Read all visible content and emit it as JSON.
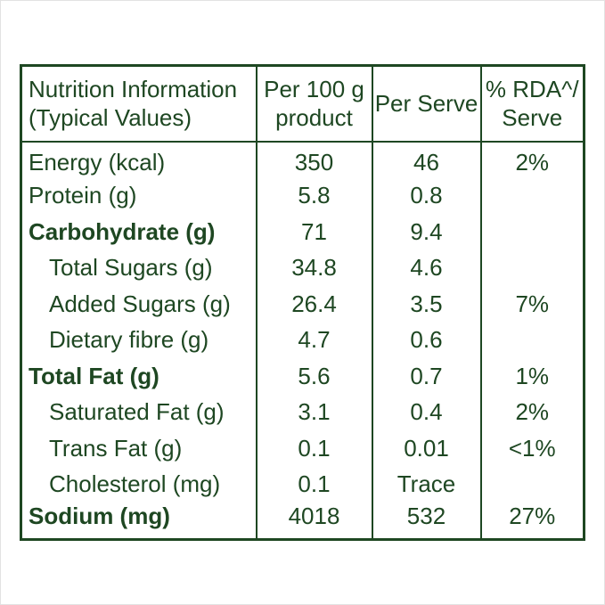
{
  "colors": {
    "text": "#1e4722",
    "background": "#ffffff",
    "border": "#1e4722"
  },
  "table": {
    "header": {
      "col1_line1": "Nutrition Information",
      "col1_line2": "(Typical Values)",
      "col2_line1": "Per 100 g",
      "col2_line2": "product",
      "col3": "Per Serve",
      "col4_line1": "% RDA^/",
      "col4_line2": "Serve"
    },
    "rows": [
      {
        "label": "Energy (kcal)",
        "per100": "350",
        "serve": "46",
        "rda": "2%",
        "bold": false,
        "indent": false
      },
      {
        "label": "Protein (g)",
        "per100": "5.8",
        "serve": "0.8",
        "rda": "",
        "bold": false,
        "indent": false
      },
      {
        "label": "Carbohydrate (g)",
        "per100": "71",
        "serve": "9.4",
        "rda": "",
        "bold": true,
        "indent": false
      },
      {
        "label": "Total Sugars (g)",
        "per100": "34.8",
        "serve": "4.6",
        "rda": "",
        "bold": false,
        "indent": true
      },
      {
        "label": "Added Sugars (g)",
        "per100": "26.4",
        "serve": "3.5",
        "rda": "7%",
        "bold": false,
        "indent": true
      },
      {
        "label": "Dietary fibre (g)",
        "per100": "4.7",
        "serve": "0.6",
        "rda": "",
        "bold": false,
        "indent": true
      },
      {
        "label": "Total Fat (g)",
        "per100": "5.6",
        "serve": "0.7",
        "rda": "1%",
        "bold": true,
        "indent": false
      },
      {
        "label": "Saturated Fat (g)",
        "per100": "3.1",
        "serve": "0.4",
        "rda": "2%",
        "bold": false,
        "indent": true
      },
      {
        "label": "Trans Fat (g)",
        "per100": "0.1",
        "serve": "0.01",
        "rda": "<1%",
        "bold": false,
        "indent": true
      },
      {
        "label": "Cholesterol (mg)",
        "per100": "0.1",
        "serve": "Trace",
        "rda": "",
        "bold": false,
        "indent": true
      },
      {
        "label": "Sodium (mg)",
        "per100": "4018",
        "serve": "532",
        "rda": "27%",
        "bold": true,
        "indent": false
      }
    ]
  }
}
